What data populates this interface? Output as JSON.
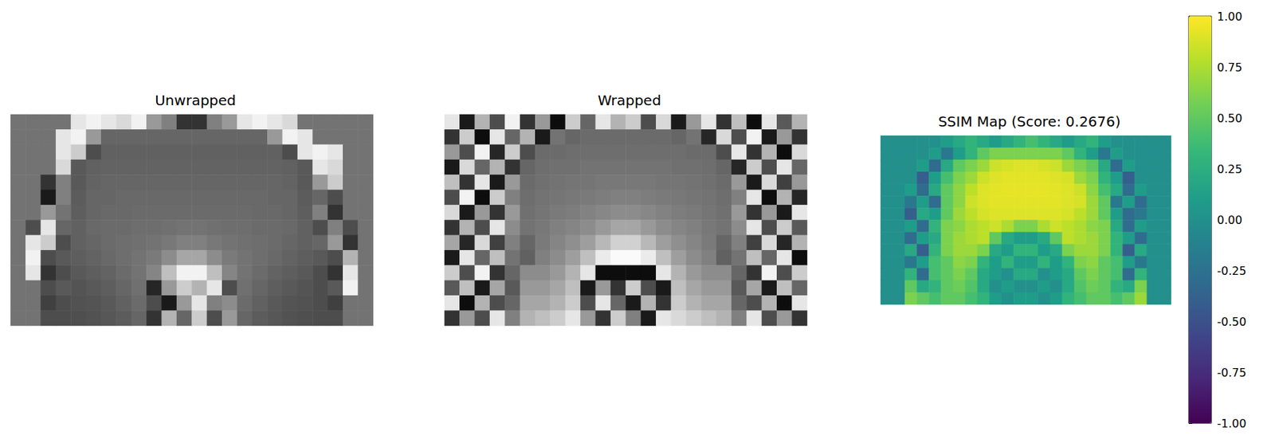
{
  "chart_data": [
    {
      "type": "heatmap",
      "title": "Unwrapped",
      "color": "gray",
      "tick_labels": false,
      "cell_range": [
        0,
        1
      ],
      "cells": [
        [
          0.45,
          0.45,
          0.45,
          0.45,
          0.9,
          0.95,
          0.9,
          0.85,
          0.95,
          0.6,
          0.5,
          0.2,
          0.2,
          0.5,
          0.6,
          0.9,
          0.95,
          0.9,
          0.85,
          0.45,
          0.45,
          0.45,
          0.45,
          0.45
        ],
        [
          0.45,
          0.45,
          0.45,
          0.9,
          0.95,
          0.6,
          0.4,
          0.4,
          0.4,
          0.4,
          0.4,
          0.4,
          0.4,
          0.4,
          0.4,
          0.4,
          0.4,
          0.6,
          0.95,
          0.9,
          0.45,
          0.45,
          0.45,
          0.45
        ],
        [
          0.45,
          0.45,
          0.45,
          0.9,
          0.8,
          0.3,
          0.38,
          0.38,
          0.38,
          0.38,
          0.38,
          0.38,
          0.38,
          0.38,
          0.38,
          0.38,
          0.38,
          0.38,
          0.3,
          0.9,
          0.95,
          0.9,
          0.45,
          0.45
        ],
        [
          0.45,
          0.45,
          0.45,
          0.85,
          0.35,
          0.38,
          0.39,
          0.39,
          0.39,
          0.39,
          0.39,
          0.39,
          0.39,
          0.39,
          0.39,
          0.39,
          0.39,
          0.39,
          0.38,
          0.35,
          0.9,
          0.85,
          0.45,
          0.45
        ],
        [
          0.45,
          0.45,
          0.2,
          0.5,
          0.35,
          0.39,
          0.4,
          0.4,
          0.4,
          0.4,
          0.4,
          0.4,
          0.4,
          0.4,
          0.4,
          0.4,
          0.4,
          0.4,
          0.39,
          0.35,
          0.6,
          0.8,
          0.45,
          0.45
        ],
        [
          0.45,
          0.45,
          0.1,
          0.5,
          0.36,
          0.4,
          0.4,
          0.41,
          0.41,
          0.41,
          0.41,
          0.41,
          0.41,
          0.41,
          0.41,
          0.41,
          0.41,
          0.4,
          0.4,
          0.36,
          0.4,
          0.3,
          0.45,
          0.45
        ],
        [
          0.45,
          0.45,
          0.6,
          0.45,
          0.37,
          0.4,
          0.41,
          0.41,
          0.42,
          0.42,
          0.42,
          0.42,
          0.42,
          0.42,
          0.42,
          0.42,
          0.41,
          0.41,
          0.4,
          0.37,
          0.5,
          0.2,
          0.45,
          0.45
        ],
        [
          0.45,
          0.3,
          0.9,
          0.4,
          0.38,
          0.41,
          0.42,
          0.42,
          0.43,
          0.43,
          0.44,
          0.45,
          0.45,
          0.44,
          0.43,
          0.43,
          0.42,
          0.42,
          0.41,
          0.38,
          0.3,
          0.5,
          0.3,
          0.45
        ],
        [
          0.45,
          0.9,
          0.8,
          0.3,
          0.38,
          0.4,
          0.42,
          0.43,
          0.44,
          0.45,
          0.47,
          0.5,
          0.5,
          0.47,
          0.45,
          0.44,
          0.43,
          0.42,
          0.4,
          0.38,
          0.4,
          0.6,
          0.2,
          0.45
        ],
        [
          0.45,
          0.95,
          0.3,
          0.35,
          0.37,
          0.39,
          0.41,
          0.43,
          0.45,
          0.48,
          0.55,
          0.65,
          0.65,
          0.55,
          0.48,
          0.45,
          0.43,
          0.41,
          0.39,
          0.37,
          0.35,
          0.3,
          0.7,
          0.45
        ],
        [
          0.45,
          0.9,
          0.2,
          0.3,
          0.35,
          0.37,
          0.39,
          0.42,
          0.45,
          0.52,
          0.75,
          0.95,
          0.95,
          0.75,
          0.52,
          0.45,
          0.42,
          0.39,
          0.37,
          0.35,
          0.3,
          0.2,
          0.9,
          0.45
        ],
        [
          0.45,
          0.45,
          0.3,
          0.35,
          0.33,
          0.35,
          0.37,
          0.4,
          0.44,
          0.15,
          0.6,
          0.8,
          0.7,
          0.9,
          0.3,
          0.44,
          0.4,
          0.37,
          0.35,
          0.33,
          0.3,
          0.35,
          0.95,
          0.45
        ],
        [
          0.45,
          0.45,
          0.25,
          0.3,
          0.32,
          0.33,
          0.35,
          0.38,
          0.42,
          0.3,
          0.1,
          0.6,
          0.9,
          0.5,
          0.55,
          0.42,
          0.38,
          0.35,
          0.33,
          0.32,
          0.3,
          0.25,
          0.45,
          0.45
        ],
        [
          0.45,
          0.45,
          0.3,
          0.3,
          0.31,
          0.32,
          0.34,
          0.36,
          0.4,
          0.2,
          0.7,
          0.4,
          0.8,
          0.3,
          0.6,
          0.4,
          0.36,
          0.34,
          0.32,
          0.31,
          0.3,
          0.3,
          0.45,
          0.45
        ]
      ]
    },
    {
      "type": "heatmap",
      "title": "Wrapped",
      "color": "gray",
      "tick_labels": false,
      "cell_range": [
        0,
        1
      ],
      "cells": [
        [
          0.9,
          0.1,
          0.7,
          0.3,
          0.95,
          0.2,
          0.6,
          0.05,
          0.8,
          0.4,
          0.9,
          0.7,
          0.8,
          0.3,
          0.85,
          0.1,
          0.6,
          0.9,
          0.2,
          0.75,
          0.05,
          0.9,
          0.35,
          0.7
        ],
        [
          0.2,
          0.8,
          0.05,
          0.9,
          0.4,
          0.7,
          0.1,
          0.45,
          0.4,
          0.42,
          0.42,
          0.42,
          0.42,
          0.42,
          0.42,
          0.4,
          0.45,
          0.15,
          0.85,
          0.3,
          0.95,
          0.1,
          0.6,
          0.2
        ],
        [
          0.6,
          0.3,
          0.95,
          0.15,
          0.8,
          0.3,
          0.42,
          0.42,
          0.43,
          0.43,
          0.43,
          0.43,
          0.43,
          0.43,
          0.43,
          0.43,
          0.42,
          0.42,
          0.3,
          0.9,
          0.2,
          0.7,
          0.05,
          0.85
        ],
        [
          0.1,
          0.85,
          0.4,
          0.7,
          0.2,
          0.4,
          0.43,
          0.44,
          0.44,
          0.45,
          0.45,
          0.45,
          0.45,
          0.45,
          0.45,
          0.44,
          0.44,
          0.43,
          0.4,
          0.15,
          0.8,
          0.3,
          0.9,
          0.4
        ],
        [
          0.75,
          0.2,
          0.9,
          0.1,
          0.6,
          0.42,
          0.44,
          0.45,
          0.46,
          0.46,
          0.47,
          0.47,
          0.47,
          0.47,
          0.46,
          0.46,
          0.45,
          0.44,
          0.42,
          0.6,
          0.1,
          0.85,
          0.25,
          0.6
        ],
        [
          0.3,
          0.95,
          0.05,
          0.8,
          0.5,
          0.43,
          0.45,
          0.46,
          0.47,
          0.48,
          0.49,
          0.5,
          0.5,
          0.49,
          0.48,
          0.47,
          0.46,
          0.45,
          0.43,
          0.5,
          0.9,
          0.05,
          0.7,
          0.15
        ],
        [
          0.85,
          0.1,
          0.6,
          0.2,
          0.6,
          0.44,
          0.46,
          0.48,
          0.49,
          0.51,
          0.53,
          0.55,
          0.55,
          0.53,
          0.51,
          0.49,
          0.48,
          0.46,
          0.44,
          0.6,
          0.2,
          0.6,
          0.1,
          0.9
        ],
        [
          0.2,
          0.7,
          0.3,
          0.9,
          0.55,
          0.45,
          0.47,
          0.5,
          0.52,
          0.55,
          0.6,
          0.65,
          0.65,
          0.6,
          0.55,
          0.52,
          0.5,
          0.47,
          0.45,
          0.55,
          0.9,
          0.3,
          0.8,
          0.35
        ],
        [
          0.65,
          0.15,
          0.85,
          0.25,
          0.5,
          0.4,
          0.48,
          0.52,
          0.56,
          0.62,
          0.72,
          0.82,
          0.82,
          0.72,
          0.62,
          0.56,
          0.52,
          0.48,
          0.4,
          0.5,
          0.25,
          0.85,
          0.15,
          0.7
        ],
        [
          0.1,
          0.9,
          0.4,
          0.75,
          0.45,
          0.38,
          0.5,
          0.55,
          0.62,
          0.75,
          0.92,
          0.98,
          0.98,
          0.92,
          0.75,
          0.62,
          0.55,
          0.5,
          0.38,
          0.45,
          0.75,
          0.4,
          0.9,
          0.05
        ],
        [
          0.8,
          0.3,
          0.95,
          0.2,
          0.4,
          0.55,
          0.55,
          0.6,
          0.7,
          0.9,
          0.05,
          0.05,
          0.05,
          0.05,
          0.9,
          0.7,
          0.6,
          0.55,
          0.55,
          0.4,
          0.2,
          0.95,
          0.3,
          0.8
        ],
        [
          0.35,
          0.75,
          0.1,
          0.65,
          0.35,
          0.6,
          0.6,
          0.65,
          0.75,
          0.1,
          0.6,
          0.2,
          0.8,
          0.3,
          0.1,
          0.75,
          0.65,
          0.6,
          0.6,
          0.35,
          0.65,
          0.1,
          0.75,
          0.4
        ],
        [
          0.9,
          0.05,
          0.7,
          0.3,
          0.4,
          0.65,
          0.65,
          0.7,
          0.8,
          0.3,
          0.9,
          0.4,
          0.1,
          0.7,
          0.2,
          0.8,
          0.7,
          0.65,
          0.65,
          0.4,
          0.3,
          0.7,
          0.05,
          0.9
        ],
        [
          0.2,
          0.6,
          0.3,
          0.9,
          0.5,
          0.7,
          0.75,
          0.8,
          0.9,
          0.6,
          0.2,
          0.8,
          0.5,
          0.1,
          0.9,
          0.85,
          0.8,
          0.75,
          0.7,
          0.5,
          0.9,
          0.3,
          0.6,
          0.2
        ]
      ]
    },
    {
      "type": "heatmap",
      "title": "SSIM Map (Score: 0.2676)",
      "color": "viridis",
      "tick_labels": false,
      "colorbar_range": [
        -1,
        1
      ],
      "colorbar_ticks": [
        {
          "value": -1,
          "label": "-1.00"
        },
        {
          "value": -0.75,
          "label": "-0.75"
        },
        {
          "value": -0.5,
          "label": "-0.50"
        },
        {
          "value": -0.25,
          "label": "-0.25"
        },
        {
          "value": 0,
          "label": "0.00"
        },
        {
          "value": 0.25,
          "label": "0.25"
        },
        {
          "value": 0.5,
          "label": "0.50"
        },
        {
          "value": 0.75,
          "label": "0.75"
        },
        {
          "value": 1,
          "label": "1.00"
        }
      ],
      "cells": [
        [
          0,
          0,
          0,
          0,
          0,
          0.1,
          0.2,
          0.3,
          0.2,
          0.1,
          0.2,
          0.3,
          0.4,
          0.3,
          0.2,
          0.1,
          0.2,
          0.3,
          0.1,
          0,
          0,
          0,
          0,
          0
        ],
        [
          0,
          0,
          0,
          0,
          0.1,
          -0.2,
          0.1,
          0.3,
          0.5,
          0.6,
          0.6,
          0.6,
          0.6,
          0.6,
          0.6,
          0.5,
          0.3,
          0.1,
          -0.2,
          0.1,
          0,
          0,
          0,
          0
        ],
        [
          0,
          0,
          0,
          0.1,
          -0.3,
          0.2,
          0.5,
          0.6,
          0.7,
          0.85,
          0.88,
          0.9,
          0.9,
          0.88,
          0.85,
          0.7,
          0.6,
          0.5,
          0.2,
          -0.3,
          0.1,
          0,
          0,
          0
        ],
        [
          0,
          0,
          0,
          -0.4,
          0.1,
          0.4,
          0.6,
          0.7,
          0.85,
          0.9,
          0.92,
          0.92,
          0.92,
          0.92,
          0.9,
          0.88,
          0.7,
          0.6,
          0.3,
          0.1,
          -0.4,
          0,
          0,
          0
        ],
        [
          0,
          0,
          0.1,
          -0.3,
          0.2,
          0.5,
          0.65,
          0.8,
          0.9,
          0.92,
          0.93,
          0.93,
          0.93,
          0.93,
          0.92,
          0.9,
          0.85,
          0.65,
          0.4,
          0.2,
          -0.3,
          0.1,
          0,
          0
        ],
        [
          0,
          0,
          -0.2,
          0.1,
          -0.3,
          0.5,
          0.65,
          0.85,
          0.9,
          0.92,
          0.92,
          0.92,
          0.92,
          0.92,
          0.92,
          0.9,
          0.88,
          0.7,
          0.5,
          -0.2,
          0.1,
          -0.3,
          0,
          0
        ],
        [
          0,
          0,
          -0.4,
          0.2,
          0.1,
          0.5,
          0.7,
          0.8,
          0.88,
          0.9,
          0.9,
          0.9,
          0.9,
          0.9,
          0.9,
          0.88,
          0.8,
          0.7,
          0.5,
          0.1,
          -0.3,
          -0.2,
          0,
          0
        ],
        [
          0,
          0,
          0.1,
          -0.3,
          0.3,
          0.6,
          0.65,
          0.75,
          0.8,
          0.85,
          0.75,
          0.6,
          0.6,
          0.75,
          0.85,
          0.8,
          0.75,
          0.65,
          0.6,
          0.2,
          -0.3,
          0.1,
          0,
          0
        ],
        [
          0,
          0,
          -0.3,
          0.1,
          0.2,
          0.6,
          0.7,
          0.75,
          0.8,
          0.5,
          0.2,
          0.1,
          0.1,
          0.2,
          0.5,
          0.8,
          0.75,
          0.7,
          0.6,
          0.3,
          0.1,
          -0.3,
          0,
          0
        ],
        [
          0,
          0,
          0.2,
          -0.4,
          0.3,
          0.6,
          0.7,
          0.7,
          0.6,
          0.2,
          0.1,
          0.3,
          0.3,
          0.1,
          0.2,
          0.6,
          0.7,
          0.7,
          0.6,
          0.3,
          -0.4,
          0.2,
          0,
          0
        ],
        [
          0,
          0,
          -0.2,
          0.1,
          0.4,
          0.5,
          0.65,
          0.6,
          0.3,
          0.1,
          0.3,
          0.1,
          0.1,
          0.3,
          0.1,
          0.3,
          0.6,
          0.65,
          0.5,
          0.4,
          0.1,
          -0.2,
          0,
          0
        ],
        [
          0,
          0,
          0.3,
          -0.3,
          0.4,
          0.5,
          0.6,
          0.5,
          0.2,
          0.1,
          0.0,
          0.2,
          0.2,
          0.0,
          0.1,
          0.2,
          0.5,
          0.6,
          0.5,
          0.4,
          -0.3,
          0.3,
          0,
          0
        ],
        [
          0,
          0,
          0.5,
          0.2,
          0.3,
          0.5,
          0.55,
          0.45,
          0.2,
          0.0,
          0.1,
          0.0,
          0.0,
          0.1,
          0.0,
          0.2,
          0.45,
          0.55,
          0.5,
          0.3,
          0.2,
          0.6,
          0,
          0
        ],
        [
          0,
          0,
          0.6,
          0.5,
          0.4,
          0.5,
          0.5,
          0.4,
          0.3,
          0.1,
          0.0,
          0.1,
          0.1,
          0.0,
          0.1,
          0.3,
          0.4,
          0.5,
          0.5,
          0.4,
          0.5,
          0.7,
          0,
          0
        ]
      ]
    }
  ]
}
